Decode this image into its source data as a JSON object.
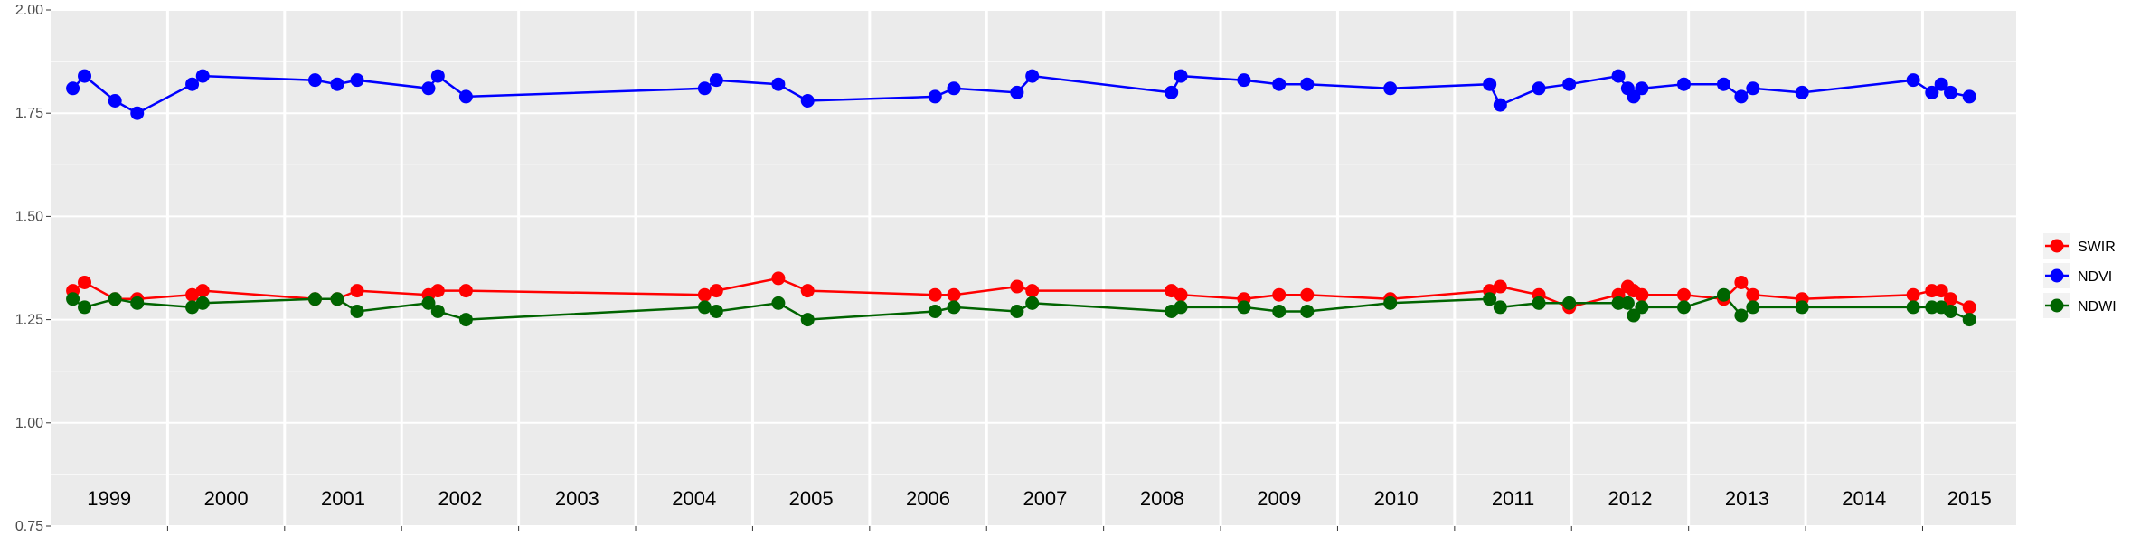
{
  "chart_data": {
    "type": "line",
    "title": "",
    "xlabel": "",
    "ylabel": "",
    "ylim": [
      0.75,
      2.0
    ],
    "yticks": [
      "0.75",
      "1.00",
      "1.25",
      "1.50",
      "1.75",
      "2.00"
    ],
    "xlim": [
      1999.0,
      2015.8
    ],
    "year_labels": [
      "1999",
      "2000",
      "2001",
      "2002",
      "2003",
      "2004",
      "2005",
      "2006",
      "2007",
      "2008",
      "2009",
      "2010",
      "2011",
      "2012",
      "2013",
      "2014",
      "2015"
    ],
    "grid": true,
    "legend_position": "right",
    "x": [
      1999.19,
      1999.29,
      1999.55,
      1999.74,
      2000.21,
      2000.3,
      2001.26,
      2001.45,
      2001.62,
      2002.23,
      2002.31,
      2002.55,
      2004.59,
      2004.69,
      2005.22,
      2005.47,
      2006.56,
      2006.72,
      2007.26,
      2007.39,
      2008.58,
      2008.66,
      2009.2,
      2009.5,
      2009.74,
      2010.45,
      2011.3,
      2011.39,
      2011.72,
      2011.98,
      2012.4,
      2012.48,
      2012.53,
      2012.6,
      2012.96,
      2013.3,
      2013.45,
      2013.55,
      2013.97,
      2014.92,
      2015.08,
      2015.16,
      2015.24,
      2015.4
    ],
    "series": [
      {
        "name": "SWIR",
        "color": "#ff0000",
        "values": [
          1.32,
          1.34,
          1.3,
          1.3,
          1.31,
          1.32,
          1.3,
          1.3,
          1.32,
          1.31,
          1.32,
          1.32,
          1.31,
          1.32,
          1.35,
          1.32,
          1.31,
          1.31,
          1.33,
          1.32,
          1.32,
          1.31,
          1.3,
          1.31,
          1.31,
          1.3,
          1.32,
          1.33,
          1.31,
          1.28,
          1.31,
          1.33,
          1.32,
          1.31,
          1.31,
          1.3,
          1.34,
          1.31,
          1.3,
          1.31,
          1.32,
          1.32,
          1.3,
          1.28
        ]
      },
      {
        "name": "NDVI",
        "color": "#0000ff",
        "values": [
          1.81,
          1.84,
          1.78,
          1.75,
          1.82,
          1.84,
          1.83,
          1.82,
          1.83,
          1.81,
          1.84,
          1.79,
          1.81,
          1.83,
          1.82,
          1.78,
          1.79,
          1.81,
          1.8,
          1.84,
          1.8,
          1.84,
          1.83,
          1.82,
          1.82,
          1.81,
          1.82,
          1.77,
          1.81,
          1.82,
          1.84,
          1.81,
          1.79,
          1.81,
          1.82,
          1.82,
          1.79,
          1.81,
          1.8,
          1.83,
          1.8,
          1.82,
          1.8,
          1.79
        ]
      },
      {
        "name": "NDWI",
        "color": "#006400",
        "values": [
          1.3,
          1.28,
          1.3,
          1.29,
          1.28,
          1.29,
          1.3,
          1.3,
          1.27,
          1.29,
          1.27,
          1.25,
          1.28,
          1.27,
          1.29,
          1.25,
          1.27,
          1.28,
          1.27,
          1.29,
          1.27,
          1.28,
          1.28,
          1.27,
          1.27,
          1.29,
          1.3,
          1.28,
          1.29,
          1.29,
          1.29,
          1.29,
          1.26,
          1.28,
          1.28,
          1.31,
          1.26,
          1.28,
          1.28,
          1.28,
          1.28,
          1.28,
          1.27,
          1.25
        ]
      }
    ]
  }
}
